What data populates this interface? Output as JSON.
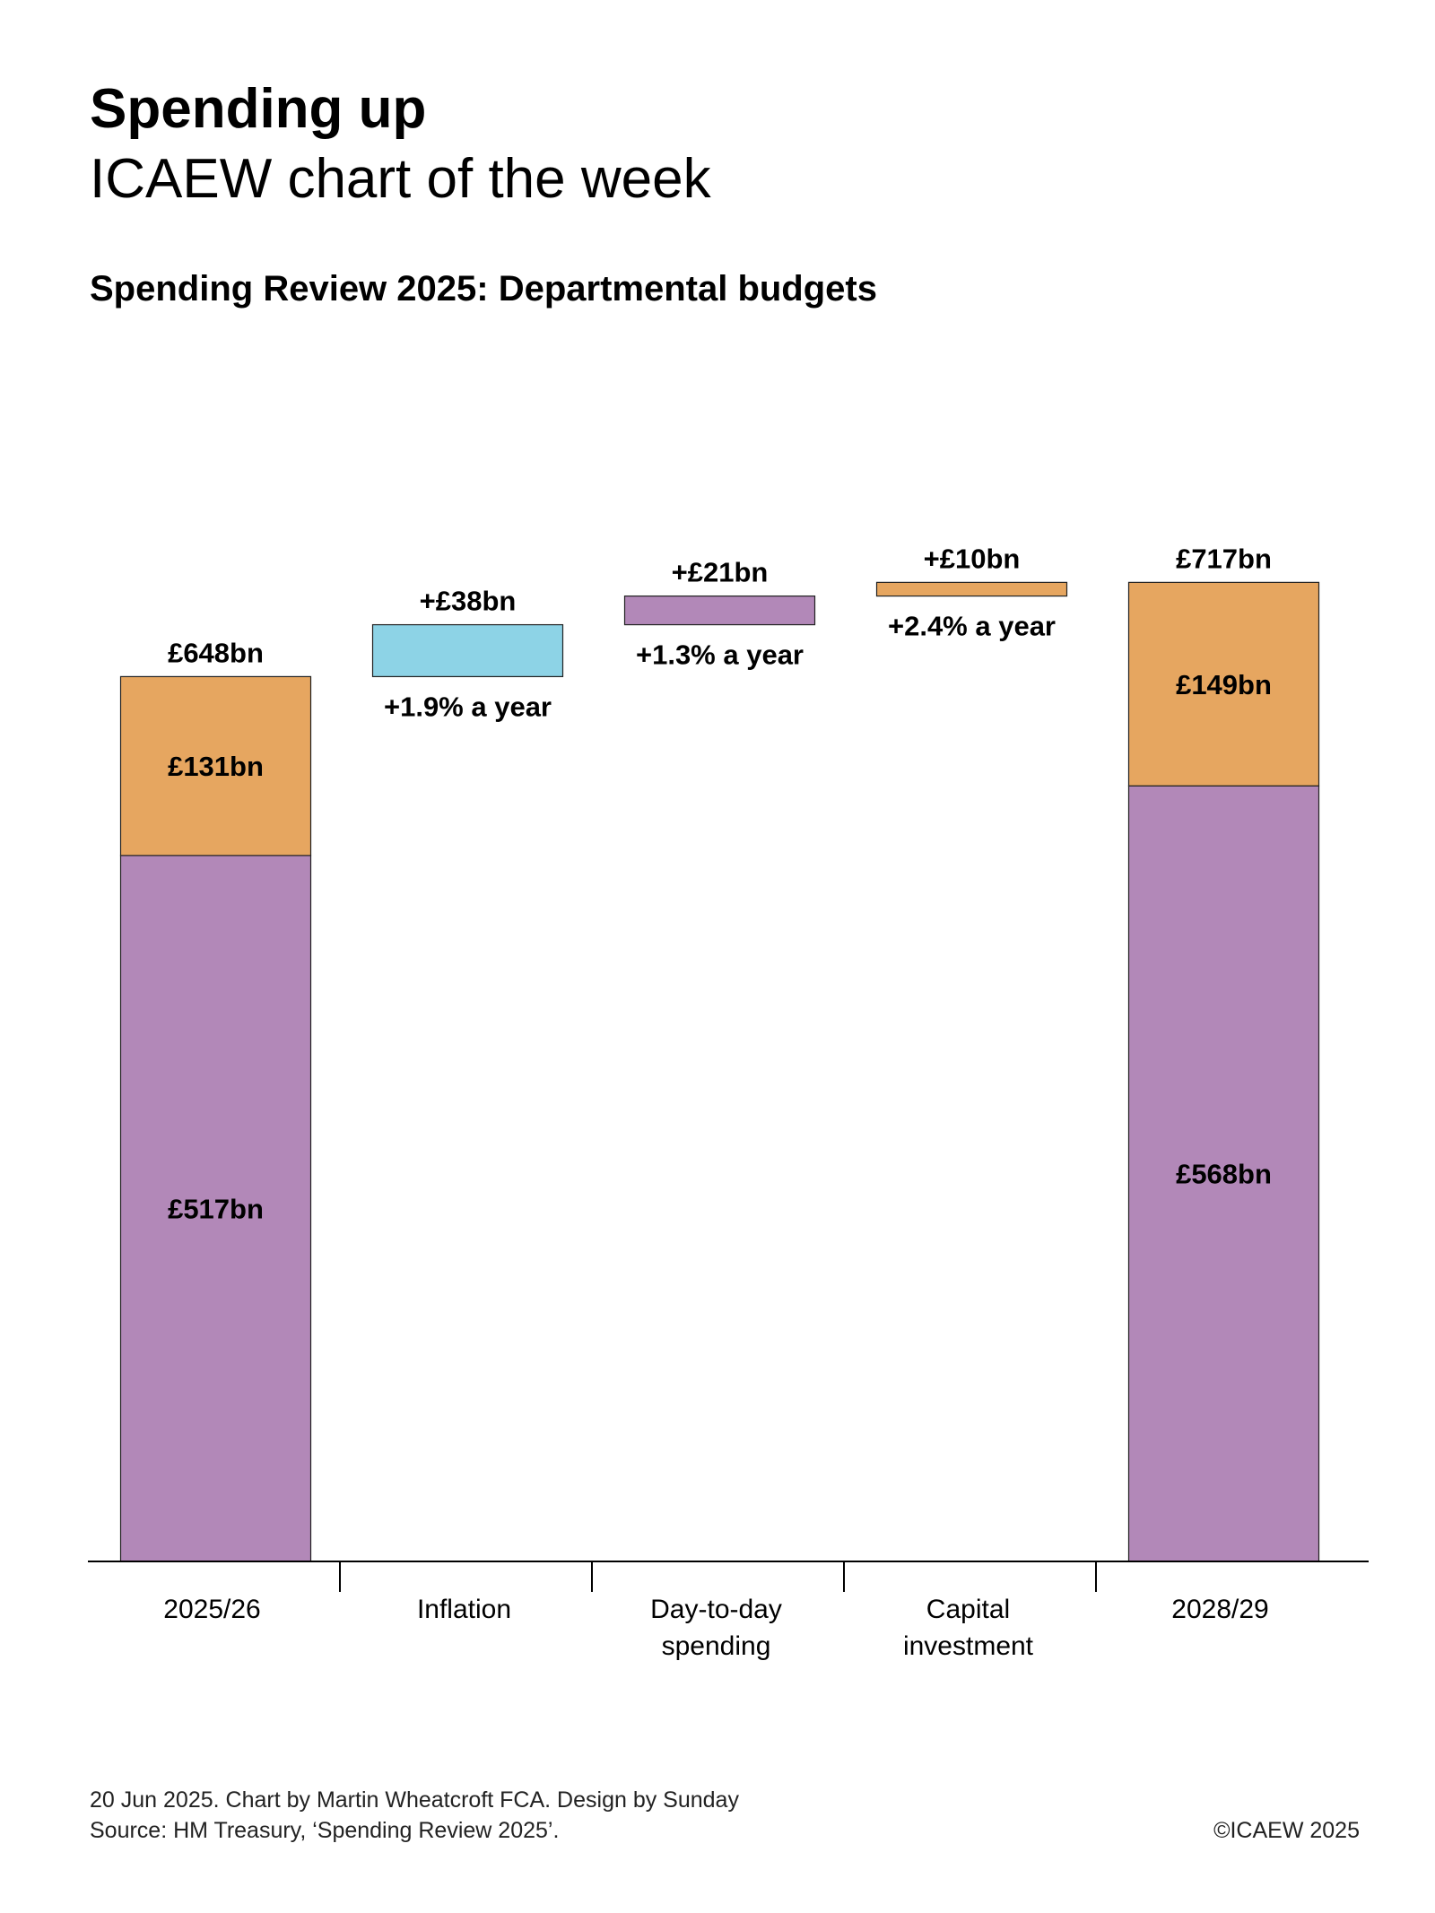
{
  "header": {
    "title": "Spending up",
    "subtitle": "ICAEW chart of the week"
  },
  "chart_data": {
    "type": "bar",
    "variant": "waterfall",
    "title": "Spending Review 2025: Departmental budgets",
    "categories": [
      {
        "id": "2025-26",
        "lines": [
          "2025/26"
        ]
      },
      {
        "id": "inflation",
        "lines": [
          "Inflation"
        ]
      },
      {
        "id": "day-to-day",
        "lines": [
          "Day-to-day",
          "spending"
        ]
      },
      {
        "id": "capital",
        "lines": [
          "Capital",
          "investment"
        ]
      },
      {
        "id": "2028-29",
        "lines": [
          "2028/29"
        ]
      }
    ],
    "ylim": [
      0,
      740
    ],
    "colors": {
      "day_to_day": "#b288b8",
      "capital": "#e6a660",
      "inflation": "#8dd3e6",
      "outline": "#222222"
    },
    "bars": [
      {
        "category": "2025-26",
        "kind": "total",
        "total_label": "£648bn",
        "segments": [
          {
            "name": "day-to-day",
            "from": 0,
            "to": 517,
            "color": "#b288b8",
            "label": "£517bn"
          },
          {
            "name": "capital",
            "from": 517,
            "to": 648,
            "color": "#e6a660",
            "label": "£131bn"
          }
        ]
      },
      {
        "category": "inflation",
        "kind": "step",
        "from": 648,
        "to": 686,
        "color": "#8dd3e6",
        "change_label": "+£38bn",
        "rate_label": "+1.9% a year"
      },
      {
        "category": "day-to-day",
        "kind": "step",
        "from": 686,
        "to": 707,
        "color": "#b288b8",
        "change_label": "+£21bn",
        "rate_label": "+1.3% a year"
      },
      {
        "category": "capital",
        "kind": "step",
        "from": 707,
        "to": 717,
        "color": "#e6a660",
        "change_label": "+£10bn",
        "rate_label": "+2.4% a year"
      },
      {
        "category": "2028-29",
        "kind": "total",
        "total_label": "£717bn",
        "segments": [
          {
            "name": "day-to-day",
            "from": 0,
            "to": 568,
            "color": "#b288b8",
            "label": "£568bn"
          },
          {
            "name": "capital",
            "from": 568,
            "to": 717,
            "color": "#e6a660",
            "label": "£149bn"
          }
        ]
      }
    ]
  },
  "footer": {
    "credit": "20 Jun 2025.  Chart by Martin Wheatcroft FCA.  Design by Sunday",
    "source": "Source: HM Treasury, ‘Spending Review 2025’.",
    "copyright": "©ICAEW 2025"
  }
}
